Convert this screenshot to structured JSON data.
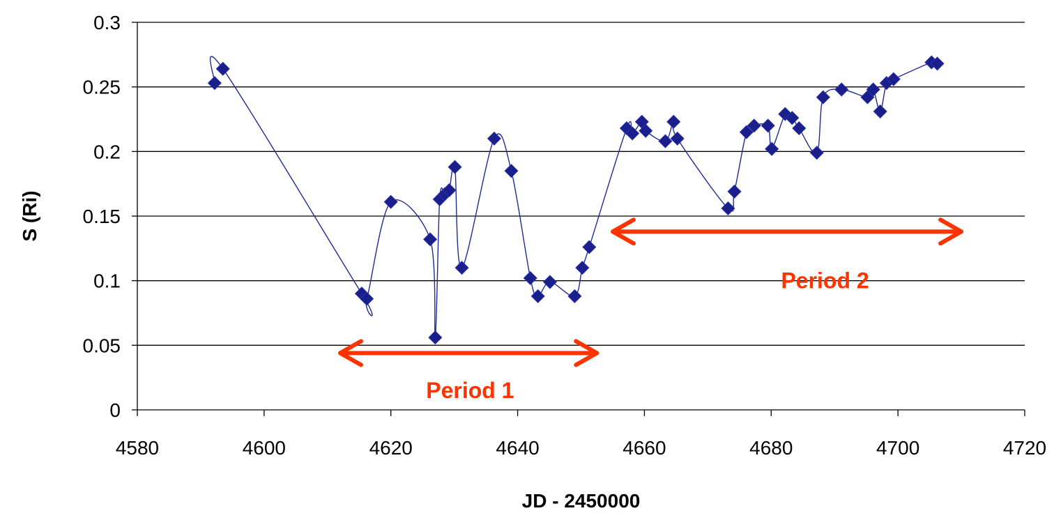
{
  "chart_data": {
    "type": "scatter",
    "title": "",
    "xlabel": "JD - 2450000",
    "ylabel": "S (Ri)",
    "xlim": [
      4580,
      4720
    ],
    "ylim": [
      0,
      0.3
    ],
    "x_ticks": [
      4580,
      4600,
      4620,
      4640,
      4660,
      4680,
      4700,
      4720
    ],
    "y_ticks": [
      "0",
      "0.05",
      "0.1",
      "0.15",
      "0.2",
      "0.25",
      "0.3"
    ],
    "grid": "horizontal",
    "legend": "none",
    "series": [
      {
        "marker": "diamond",
        "line": "smoothed",
        "color": "#1f2a99",
        "x": [
          4592.2,
          4593.5,
          4615.4,
          4616.2,
          4620.0,
          4626.2,
          4627.0,
          4627.7,
          4628.5,
          4629.2,
          4630.1,
          4631.2,
          4636.3,
          4639.0,
          4642.0,
          4643.2,
          4645.1,
          4649.0,
          4650.2,
          4651.3,
          4657.2,
          4658.1,
          4659.6,
          4660.2,
          4663.3,
          4664.6,
          4665.2,
          4673.2,
          4674.2,
          4676.1,
          4677.3,
          4679.5,
          4680.1,
          4682.2,
          4683.3,
          4684.4,
          4687.2,
          4688.2,
          4691.1,
          4695.2,
          4696.1,
          4697.2,
          4698.2,
          4699.3,
          4705.3,
          4706.2
        ],
        "y": [
          0.253,
          0.264,
          0.09,
          0.086,
          0.161,
          0.132,
          0.056,
          0.163,
          0.167,
          0.17,
          0.188,
          0.11,
          0.21,
          0.185,
          0.102,
          0.088,
          0.099,
          0.088,
          0.11,
          0.126,
          0.218,
          0.214,
          0.223,
          0.216,
          0.208,
          0.223,
          0.21,
          0.156,
          0.169,
          0.215,
          0.22,
          0.22,
          0.202,
          0.229,
          0.226,
          0.218,
          0.199,
          0.242,
          0.248,
          0.242,
          0.248,
          0.231,
          0.253,
          0.256,
          0.269,
          0.268
        ]
      }
    ],
    "annotations": [
      {
        "text": "Period 1",
        "x_from": 4612,
        "x_to": 4652.5,
        "y": 0.044,
        "label_x": 4632.5,
        "label_y": 0.015,
        "color": "#ff3300"
      },
      {
        "text": "Period 2",
        "x_from": 4655,
        "x_to": 4710,
        "y": 0.138,
        "label_x": 4688.5,
        "label_y": 0.1,
        "color": "#ff3300"
      }
    ]
  }
}
